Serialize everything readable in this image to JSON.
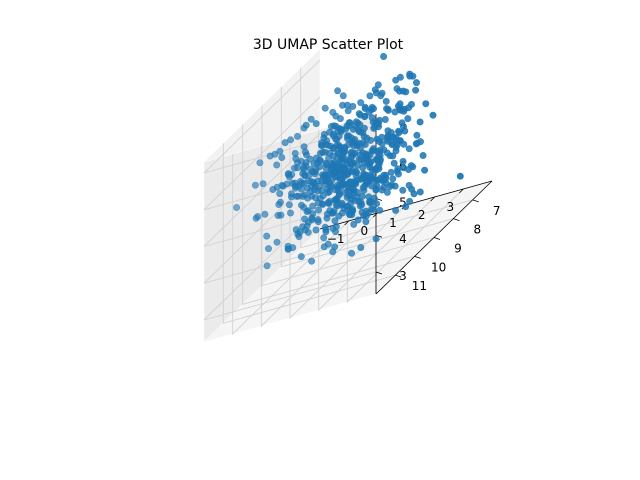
{
  "chart_data": {
    "type": "scatter",
    "projection": "3d",
    "title": "3D UMAP Scatter Plot",
    "xlabel": "",
    "ylabel": "",
    "zlabel": "",
    "xlim": [
      -2,
      4
    ],
    "ylim": [
      6,
      12
    ],
    "zlim": [
      2.4,
      7.3
    ],
    "x_ticks": [
      -1,
      0,
      1,
      2,
      3
    ],
    "y_ticks": [
      7,
      8,
      9,
      10,
      11
    ],
    "z_ticks": [
      3,
      4,
      5,
      6,
      7
    ],
    "grid": true,
    "point_color": "#1f77b4",
    "point_count": 600,
    "distribution": "roughly spherical cloud centered near (1, 9, 5)"
  }
}
